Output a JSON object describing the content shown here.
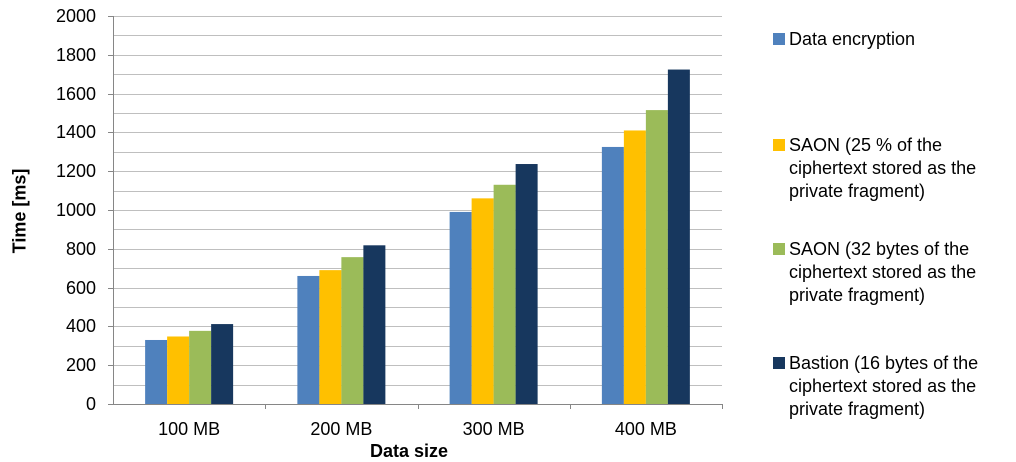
{
  "chart_data": {
    "type": "bar",
    "title": "",
    "xlabel": "Data size",
    "ylabel": "Time [ms]",
    "categories": [
      "100 MB",
      "200 MB",
      "300 MB",
      "400 MB"
    ],
    "ylim": [
      0,
      2000
    ],
    "yticks": [
      "0",
      "200",
      "400",
      "600",
      "800",
      "1000",
      "1200",
      "1400",
      "1600",
      "1800",
      "2000"
    ],
    "grid": true,
    "legend_position": "right",
    "series": [
      {
        "name": "Data encryption",
        "color": "#4F81BD",
        "values": [
          330,
          660,
          990,
          1325
        ]
      },
      {
        "name": "SAON (25 % of the ciphertext stored as the private fragment)",
        "color": "#FFC000",
        "values": [
          348,
          690,
          1060,
          1410
        ]
      },
      {
        "name": " SAON (32 bytes of the ciphertext stored as the private fragment)",
        "color": "#9BBB59",
        "values": [
          377,
          757,
          1130,
          1515
        ]
      },
      {
        "name": "Bastion (16 bytes of the ciphertext stored as the private fragment)",
        "color": "#17375E",
        "values": [
          412,
          818,
          1237,
          1724
        ]
      }
    ]
  }
}
